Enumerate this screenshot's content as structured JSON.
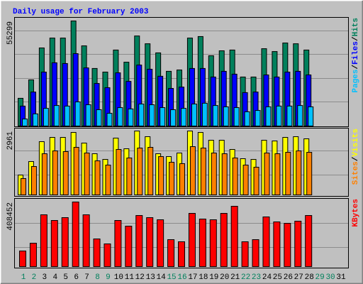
{
  "chart_data": [
    {
      "type": "bar",
      "title": "Daily usage for February 2003",
      "ylim": [
        0,
        55299
      ],
      "yticks": [
        55299
      ],
      "separator": "/",
      "series": [
        {
          "name": "Hits",
          "color": "#00805c",
          "values": [
            14600,
            24300,
            41100,
            46300,
            46300,
            55299,
            42200,
            30300,
            28400,
            40000,
            33600,
            47400,
            43300,
            38500,
            28800,
            29500,
            46300,
            47100,
            37000,
            39600,
            40000,
            25800,
            25800,
            40700,
            39200,
            43700,
            43300,
            40000,
            null,
            null,
            null
          ]
        },
        {
          "name": "Files",
          "color": "#0000ff",
          "values": [
            10500,
            17900,
            28400,
            33300,
            32900,
            38100,
            30600,
            22400,
            20200,
            28000,
            23500,
            32100,
            29900,
            26200,
            19800,
            20500,
            30300,
            30300,
            25800,
            28800,
            27300,
            17600,
            17900,
            26900,
            25800,
            28400,
            28800,
            26900,
            null,
            null,
            null
          ]
        },
        {
          "name": "Pages",
          "color": "#00c0ff",
          "values": [
            3700,
            6400,
            9300,
            10800,
            10500,
            12700,
            11200,
            8600,
            6700,
            9700,
            9000,
            11600,
            11200,
            9700,
            8600,
            9300,
            11600,
            12000,
            10800,
            10100,
            9700,
            7500,
            8200,
            10100,
            10500,
            10500,
            10800,
            10100,
            null,
            null,
            null
          ]
        }
      ]
    },
    {
      "type": "bar",
      "ylim": [
        0,
        2961
      ],
      "yticks": [
        2961
      ],
      "separator": "/",
      "series": [
        {
          "name": "Visits",
          "color": "#ffff00",
          "values": [
            921,
            1546,
            2467,
            2665,
            2665,
            2895,
            2402,
            1908,
            1645,
            2632,
            2138,
            2961,
            2698,
            1908,
            1776,
            1941,
            2961,
            2895,
            2533,
            2533,
            2106,
            1678,
            1645,
            2533,
            2500,
            2665,
            2698,
            2599,
            null,
            null,
            null
          ]
        },
        {
          "name": "Sites",
          "color": "#ff8000",
          "values": [
            757,
            1316,
            1908,
            2040,
            2007,
            2204,
            1941,
            1579,
            1382,
            2106,
            1711,
            2171,
            2204,
            1776,
            1513,
            1448,
            2237,
            2171,
            1941,
            1908,
            1711,
            1382,
            1283,
            1941,
            1908,
            1974,
            2040,
            1974,
            null,
            null,
            null
          ]
        }
      ]
    },
    {
      "type": "bar",
      "ylim": [
        0,
        408452
      ],
      "yticks": [
        408452
      ],
      "categories": [
        1,
        2,
        3,
        4,
        5,
        6,
        7,
        8,
        9,
        10,
        11,
        12,
        13,
        14,
        15,
        16,
        17,
        18,
        19,
        20,
        21,
        22,
        23,
        24,
        25,
        26,
        27,
        28,
        29,
        30,
        31
      ],
      "category_colors": [
        "#00805c",
        "#00805c",
        "#000000",
        "#000000",
        "#000000",
        "#000000",
        "#000000",
        "#00805c",
        "#00805c",
        "#000000",
        "#000000",
        "#000000",
        "#000000",
        "#000000",
        "#00805c",
        "#00805c",
        "#000000",
        "#000000",
        "#000000",
        "#000000",
        "#000000",
        "#00805c",
        "#00805c",
        "#000000",
        "#000000",
        "#000000",
        "#000000",
        "#000000",
        "#00805c",
        "#00805c",
        "#000000"
      ],
      "series": [
        {
          "name": "KBytes",
          "color": "#ff0000",
          "values": [
            98700,
            148100,
            327600,
            291700,
            309700,
            408452,
            327600,
            175000,
            143600,
            291700,
            255800,
            323100,
            309700,
            296200,
            170500,
            157100,
            336600,
            300700,
            296200,
            336600,
            381500,
            157100,
            170500,
            314200,
            282700,
            273800,
            287200,
            323100,
            null,
            null,
            null
          ]
        }
      ]
    }
  ]
}
